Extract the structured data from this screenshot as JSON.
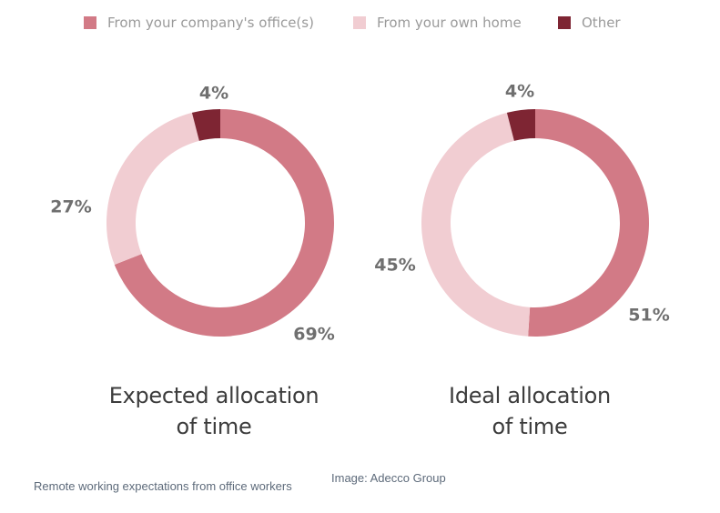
{
  "legend": {
    "items": [
      {
        "label": "From your company's office(s)",
        "color": "#d27a86"
      },
      {
        "label": "From your own home",
        "color": "#f1cdd2"
      },
      {
        "label": "Other",
        "color": "#7e2533"
      }
    ]
  },
  "chart_data": [
    {
      "type": "pie",
      "variant": "donut",
      "title_line1": "Expected allocation",
      "title_line2": "of time",
      "categories": [
        "From your company's office(s)",
        "From your own home",
        "Other"
      ],
      "values": [
        69,
        27,
        4
      ],
      "labels": [
        "69%",
        "27%",
        "4%"
      ]
    },
    {
      "type": "pie",
      "variant": "donut",
      "title_line1": "Ideal allocation",
      "title_line2": "of time",
      "categories": [
        "From your company's office(s)",
        "From your own home",
        "Other"
      ],
      "values": [
        51,
        45,
        4
      ],
      "labels": [
        "51%",
        "45%",
        "4%"
      ]
    }
  ],
  "footer": {
    "caption": "Remote working expectations from office workers",
    "credit": "Image: Adecco Group"
  }
}
